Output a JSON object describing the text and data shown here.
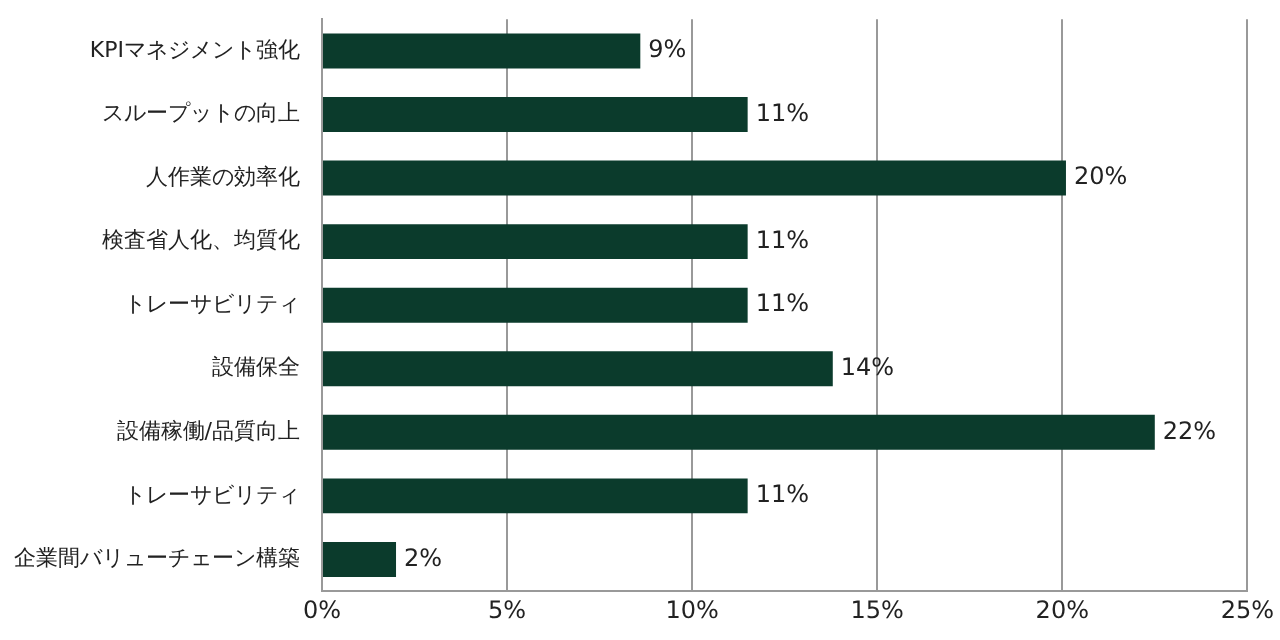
{
  "chart_data": {
    "type": "bar",
    "orientation": "horizontal",
    "categories": [
      "KPIマネジメント強化",
      "スループットの向上",
      "人作業の効率化",
      "検査省人化、均質化",
      "トレーサビリティ",
      "設備保全",
      "設備稼働/品質向上",
      "トレーサビリティ",
      "企業間バリューチェーン構築"
    ],
    "values": [
      8.6,
      11.5,
      20.1,
      11.5,
      11.5,
      13.8,
      22.5,
      11.5,
      2.0
    ],
    "value_labels": [
      "9%",
      "11%",
      "20%",
      "11%",
      "11%",
      "14%",
      "22%",
      "11%",
      "2%"
    ],
    "color": "#0b3b2c",
    "xlim": [
      0,
      25
    ],
    "xticks": [
      {
        "value": 0,
        "label": "0%"
      },
      {
        "value": 5,
        "label": "5%"
      },
      {
        "value": 10,
        "label": "10%"
      },
      {
        "value": 15,
        "label": "15%"
      },
      {
        "value": 20,
        "label": "20%"
      },
      {
        "value": 25,
        "label": "25%"
      }
    ],
    "grid": "x",
    "legend": false
  }
}
